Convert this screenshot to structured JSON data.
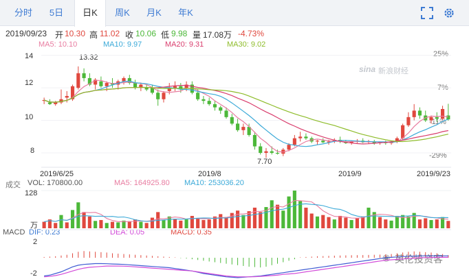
{
  "tabs": [
    {
      "label": "分时"
    },
    {
      "label": "5日"
    },
    {
      "label": "日K"
    },
    {
      "label": "周K"
    },
    {
      "label": "月K"
    },
    {
      "label": "年K"
    }
  ],
  "active_tab": "日K",
  "quote": {
    "date": "2019/09/23",
    "open_label": "开",
    "open": "10.30",
    "high_label": "高",
    "high": "11.02",
    "close_label": "收",
    "close": "10.06",
    "low_label": "低",
    "low": "9.98",
    "volume_label": "量",
    "volume": "17.08万",
    "change": "-4.73%"
  },
  "ma_legend": {
    "ma5": "MA5: 10.10",
    "ma10": "MA10: 9.97",
    "ma20": "MA20: 9.31",
    "ma30": "MA30: 9.02"
  },
  "price_axis": {
    "left_ticks": [
      "14",
      "12",
      "10",
      "8"
    ],
    "right_ticks": [
      "25%",
      "7%",
      "-11%",
      "-29%"
    ],
    "high_annotation": "13.32",
    "low_annotation": "7.70"
  },
  "date_axis": [
    "2019/6/25",
    "2019/8",
    "2019/9",
    "2019/9/23"
  ],
  "watermark": "新浪财经",
  "watermark_brand": "sina",
  "volume_panel": {
    "title": "成交",
    "vol": "VOL: 170800.00",
    "ma5": "MA5: 164925.80",
    "ma10": "MA10: 253036.20",
    "top_tick": "128",
    "unit": "万"
  },
  "macd_panel": {
    "title": "MACD",
    "dif": "DIF: 0.23",
    "dea": "DEA: 0.05",
    "macd": "MACD: 0.35",
    "ticks": [
      "2",
      "-2"
    ]
  },
  "account_watermark": "英伦投资客",
  "colors": {
    "up": "#e0483e",
    "down": "#4cb839",
    "ma5": "#e87ca0",
    "ma10": "#3aa9d8",
    "ma20": "#d93d6d",
    "ma30": "#8ebc2a",
    "accent": "#3e7bd3"
  },
  "chart_data": {
    "type": "candlestick",
    "ylim": [
      7.2,
      14.2
    ],
    "x_labels": [
      "2019/6/25",
      "2019/8",
      "2019/9",
      "2019/9/23"
    ],
    "candles": [
      [
        11.2,
        11.4,
        11.0,
        11.25
      ],
      [
        11.1,
        11.3,
        10.95,
        11.0
      ],
      [
        11.0,
        11.2,
        10.9,
        11.1
      ],
      [
        11.1,
        11.9,
        11.0,
        11.3
      ],
      [
        11.4,
        11.8,
        11.1,
        11.5
      ],
      [
        11.3,
        12.2,
        11.2,
        12.1
      ],
      [
        12.0,
        13.32,
        11.9,
        12.9
      ],
      [
        12.9,
        13.2,
        12.4,
        12.6
      ],
      [
        12.6,
        12.9,
        12.1,
        12.2
      ],
      [
        12.2,
        12.6,
        11.9,
        12.5
      ],
      [
        12.4,
        12.7,
        12.0,
        12.1
      ],
      [
        12.1,
        12.4,
        11.8,
        12.3
      ],
      [
        12.3,
        12.6,
        12.0,
        12.2
      ],
      [
        12.2,
        12.5,
        11.9,
        12.4
      ],
      [
        12.4,
        12.7,
        12.2,
        12.6
      ],
      [
        12.6,
        12.8,
        12.2,
        12.3
      ],
      [
        12.3,
        12.5,
        11.9,
        12.0
      ],
      [
        12.0,
        12.3,
        11.8,
        12.2
      ],
      [
        12.0,
        12.2,
        11.8,
        11.9
      ],
      [
        12.0,
        12.2,
        11.6,
        11.7
      ],
      [
        11.7,
        11.9,
        10.9,
        11.3
      ],
      [
        11.3,
        11.8,
        11.1,
        11.7
      ],
      [
        11.8,
        12.3,
        11.6,
        12.0
      ],
      [
        12.0,
        12.4,
        11.8,
        12.1
      ],
      [
        12.1,
        12.3,
        11.7,
        11.9
      ],
      [
        12.0,
        12.4,
        11.8,
        12.2
      ],
      [
        12.2,
        12.4,
        11.6,
        11.7
      ],
      [
        11.7,
        11.9,
        11.2,
        11.3
      ],
      [
        11.3,
        11.5,
        11.0,
        11.2
      ],
      [
        11.2,
        11.4,
        10.9,
        11.0
      ],
      [
        11.0,
        11.2,
        10.6,
        10.8
      ],
      [
        10.8,
        10.9,
        10.4,
        10.6
      ],
      [
        10.6,
        10.8,
        10.1,
        10.2
      ],
      [
        10.2,
        10.4,
        9.7,
        9.8
      ],
      [
        9.8,
        10.1,
        9.3,
        9.4
      ],
      [
        9.4,
        9.8,
        9.1,
        9.6
      ],
      [
        9.6,
        9.8,
        9.0,
        9.1
      ],
      [
        9.1,
        9.3,
        8.2,
        8.4
      ],
      [
        8.4,
        8.6,
        7.9,
        8.0
      ],
      [
        8.0,
        8.3,
        7.7,
        8.1
      ],
      [
        8.1,
        8.4,
        7.9,
        8.0
      ],
      [
        8.0,
        8.2,
        7.9,
        7.95
      ],
      [
        7.95,
        8.3,
        7.8,
        8.2
      ],
      [
        8.2,
        8.6,
        8.1,
        8.5
      ],
      [
        8.5,
        9.1,
        8.4,
        8.9
      ],
      [
        8.9,
        9.3,
        8.7,
        9.0
      ],
      [
        9.0,
        9.2,
        8.8,
        8.9
      ],
      [
        8.9,
        9.0,
        8.6,
        8.7
      ],
      [
        8.7,
        8.8,
        8.5,
        8.75
      ],
      [
        8.75,
        8.9,
        8.6,
        8.65
      ],
      [
        8.65,
        8.8,
        8.5,
        8.7
      ],
      [
        8.7,
        8.9,
        8.6,
        8.8
      ],
      [
        8.8,
        9.0,
        8.6,
        8.7
      ],
      [
        8.7,
        8.8,
        8.55,
        8.6
      ],
      [
        8.6,
        8.75,
        8.5,
        8.7
      ],
      [
        8.7,
        8.85,
        8.6,
        8.75
      ],
      [
        8.75,
        8.9,
        8.6,
        8.65
      ],
      [
        8.65,
        8.8,
        8.55,
        8.7
      ],
      [
        8.7,
        8.8,
        8.5,
        8.6
      ],
      [
        8.6,
        8.7,
        8.5,
        8.65
      ],
      [
        8.65,
        8.75,
        8.5,
        8.6
      ],
      [
        8.6,
        8.75,
        8.5,
        8.7
      ],
      [
        8.7,
        9.0,
        8.6,
        8.9
      ],
      [
        8.9,
        9.8,
        8.8,
        9.7
      ],
      [
        9.7,
        10.5,
        9.6,
        10.2
      ],
      [
        10.2,
        11.0,
        10.0,
        10.6
      ],
      [
        10.6,
        10.8,
        10.1,
        10.3
      ],
      [
        10.3,
        10.6,
        9.9,
        10.0
      ],
      [
        10.0,
        10.3,
        9.8,
        10.2
      ],
      [
        10.2,
        10.5,
        9.9,
        10.1
      ],
      [
        10.1,
        10.9,
        10.0,
        10.7
      ],
      [
        10.3,
        11.02,
        9.98,
        10.06
      ]
    ],
    "volume_ylim": [
      0,
      128
    ],
    "volume": [
      [
        22,
        1
      ],
      [
        30,
        1
      ],
      [
        18,
        1
      ],
      [
        45,
        0
      ],
      [
        20,
        1
      ],
      [
        62,
        0
      ],
      [
        88,
        0
      ],
      [
        55,
        1
      ],
      [
        40,
        1
      ],
      [
        25,
        0
      ],
      [
        28,
        1
      ],
      [
        18,
        0
      ],
      [
        22,
        1
      ],
      [
        20,
        0
      ],
      [
        26,
        0
      ],
      [
        24,
        1
      ],
      [
        30,
        1
      ],
      [
        22,
        0
      ],
      [
        18,
        1
      ],
      [
        36,
        1
      ],
      [
        55,
        1
      ],
      [
        28,
        0
      ],
      [
        40,
        0
      ],
      [
        32,
        1
      ],
      [
        26,
        1
      ],
      [
        30,
        0
      ],
      [
        42,
        1
      ],
      [
        35,
        1
      ],
      [
        28,
        1
      ],
      [
        30,
        1
      ],
      [
        40,
        1
      ],
      [
        48,
        1
      ],
      [
        38,
        1
      ],
      [
        52,
        1
      ],
      [
        60,
        1
      ],
      [
        45,
        0
      ],
      [
        58,
        1
      ],
      [
        70,
        1
      ],
      [
        55,
        1
      ],
      [
        72,
        0
      ],
      [
        95,
        0
      ],
      [
        80,
        1
      ],
      [
        60,
        0
      ],
      [
        108,
        0
      ],
      [
        128,
        0
      ],
      [
        92,
        0
      ],
      [
        70,
        1
      ],
      [
        50,
        1
      ],
      [
        40,
        0
      ],
      [
        45,
        1
      ],
      [
        38,
        1
      ],
      [
        30,
        0
      ],
      [
        42,
        1
      ],
      [
        36,
        1
      ],
      [
        28,
        0
      ],
      [
        35,
        1
      ],
      [
        40,
        1
      ],
      [
        70,
        0
      ],
      [
        55,
        0
      ],
      [
        38,
        1
      ],
      [
        30,
        1
      ],
      [
        26,
        0
      ],
      [
        42,
        0
      ],
      [
        45,
        0
      ],
      [
        40,
        0
      ],
      [
        52,
        0
      ],
      [
        30,
        1
      ],
      [
        34,
        1
      ],
      [
        28,
        0
      ],
      [
        30,
        1
      ],
      [
        38,
        0
      ],
      [
        25,
        1
      ]
    ],
    "macd_ylim": [
      -2.4,
      2.4
    ],
    "macd_hist": [
      0.1,
      0.15,
      0.2,
      0.3,
      0.4,
      0.6,
      0.8,
      0.9,
      0.85,
      0.8,
      0.75,
      0.7,
      0.6,
      0.55,
      0.5,
      0.45,
      0.4,
      0.35,
      0.3,
      0.25,
      0.2,
      0.15,
      0.1,
      0.05,
      -0.05,
      -0.1,
      -0.2,
      -0.3,
      -0.4,
      -0.5,
      -0.6,
      -0.7,
      -0.8,
      -0.9,
      -1.0,
      -1.1,
      -1.2,
      -1.25,
      -1.3,
      -1.2,
      -1.0,
      -0.8,
      -0.6,
      -0.4,
      -0.2,
      0.05,
      0.1,
      0.15,
      0.2,
      0.22,
      0.25,
      0.28,
      0.3,
      0.32,
      0.34,
      0.35,
      0.36,
      0.38,
      0.4,
      0.42,
      0.45,
      0.5,
      0.6,
      0.7,
      0.8,
      0.85,
      0.8,
      0.75,
      0.7,
      0.6,
      0.5,
      0.35
    ],
    "macd_dif": [
      -2.2,
      -2.1,
      -1.9,
      -1.7,
      -1.4,
      -1.1,
      -0.9,
      -0.8,
      -0.75,
      -0.7,
      -0.7,
      -0.72,
      -0.75,
      -0.78,
      -0.8,
      -0.85,
      -0.9,
      -0.95,
      -1.0,
      -1.05,
      -1.1,
      -1.15,
      -1.2,
      -1.3,
      -1.4,
      -1.5,
      -1.6,
      -1.75,
      -1.9,
      -2.0,
      -2.1,
      -2.2,
      -2.3,
      -2.35,
      -2.4,
      -2.35,
      -2.3,
      -2.25,
      -2.2,
      -2.1,
      -2.0,
      -1.9,
      -1.8,
      -1.7,
      -1.6,
      -1.5,
      -1.4,
      -1.3,
      -1.2,
      -1.1,
      -1.0,
      -0.9,
      -0.8,
      -0.7,
      -0.6,
      -0.5,
      -0.4,
      -0.3,
      -0.2,
      -0.1,
      0.0,
      0.05,
      0.1,
      0.14,
      0.18,
      0.2,
      0.22,
      0.23,
      0.23,
      0.23,
      0.23,
      0.23
    ],
    "macd_dea": [
      -2.3,
      -2.25,
      -2.15,
      -2.0,
      -1.8,
      -1.6,
      -1.4,
      -1.25,
      -1.15,
      -1.1,
      -1.05,
      -1.0,
      -1.0,
      -1.0,
      -1.02,
      -1.05,
      -1.1,
      -1.15,
      -1.2,
      -1.25,
      -1.3,
      -1.35,
      -1.4,
      -1.45,
      -1.5,
      -1.55,
      -1.6,
      -1.7,
      -1.8,
      -1.9,
      -2.0,
      -2.1,
      -2.2,
      -2.25,
      -2.3,
      -2.3,
      -2.3,
      -2.28,
      -2.25,
      -2.2,
      -2.15,
      -2.1,
      -2.0,
      -1.95,
      -1.9,
      -1.8,
      -1.7,
      -1.6,
      -1.5,
      -1.4,
      -1.3,
      -1.2,
      -1.1,
      -1.0,
      -0.9,
      -0.8,
      -0.7,
      -0.6,
      -0.5,
      -0.4,
      -0.3,
      -0.25,
      -0.2,
      -0.15,
      -0.1,
      -0.05,
      0.0,
      0.02,
      0.03,
      0.04,
      0.05,
      0.05
    ]
  }
}
